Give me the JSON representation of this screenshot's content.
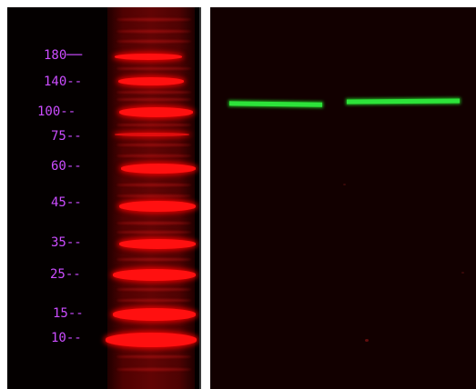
{
  "image": {
    "type": "western-blot",
    "marker_labels": [
      "180",
      "140",
      "100",
      "75",
      "60",
      "45",
      "35",
      "25",
      "15",
      "10"
    ],
    "label_color": "#cc4dff",
    "marker_color": "#ff1010",
    "sample_band_color": "#2de33a",
    "background_left": "#040000",
    "background_right": "#120000"
  }
}
